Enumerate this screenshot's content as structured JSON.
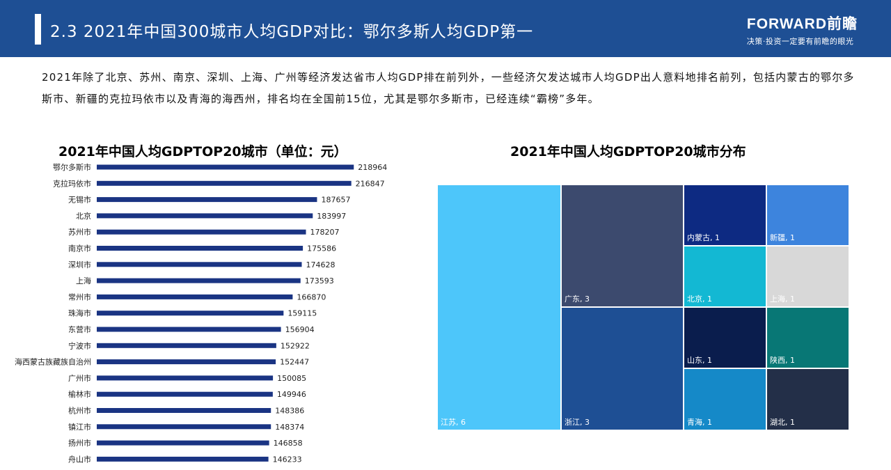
{
  "header": {
    "title": "2.3 2021年中国300城市人均GDP对比：鄂尔多斯人均GDP第一",
    "logo_name": "FORWARD前瞻",
    "logo_slogan": "决策·投资一定要有前瞻的眼光"
  },
  "intro_text": "2021年除了北京、苏州、南京、深圳、上海、广州等经济发达省市人均GDP排在前列外，一些经济欠发达城市人均GDP出人意料地排名前列，包括内蒙古的鄂尔多斯市、新疆的克拉玛依市以及青海的海西州，排名均在全国前15位，尤其是鄂尔多斯市，已经连续“霸榜”多年。",
  "colors": {
    "header": "#1e4f94",
    "bar": "#1a3483"
  },
  "chart_data": [
    {
      "type": "bar",
      "orientation": "horizontal",
      "title": "2021年中国人均GDPTOP20城市（单位：元）",
      "categories": [
        "鄂尔多斯市",
        "克拉玛依市",
        "无锡市",
        "北京",
        "苏州市",
        "南京市",
        "深圳市",
        "上海",
        "常州市",
        "珠海市",
        "东营市",
        "宁波市",
        "海西蒙古族藏族自治州",
        "广州市",
        "榆林市",
        "杭州市",
        "镇江市",
        "扬州市",
        "舟山市"
      ],
      "values": [
        218964,
        216847,
        187657,
        183997,
        178207,
        175586,
        174628,
        173593,
        166870,
        159115,
        156904,
        152922,
        152447,
        150085,
        149946,
        148386,
        148374,
        146858,
        146233
      ],
      "xlim": [
        0,
        220000
      ]
    },
    {
      "type": "treemap",
      "title": "2021年中国人均GDPTOP20城市分布",
      "items": [
        {
          "name": "江苏",
          "value": 6,
          "color": "#4dc6fa",
          "label": "江苏, 6"
        },
        {
          "name": "广东",
          "value": 3,
          "color": "#3c4a6e",
          "label": "广东, 3"
        },
        {
          "name": "浙江",
          "value": 3,
          "color": "#1e4f94",
          "label": "浙江, 3"
        },
        {
          "name": "内蒙古",
          "value": 1,
          "color": "#0d2a82",
          "label": "内蒙古, 1"
        },
        {
          "name": "新疆",
          "value": 1,
          "color": "#3d84dd",
          "label": "新疆, 1"
        },
        {
          "name": "北京",
          "value": 1,
          "color": "#13b8d3",
          "label": "北京, 1"
        },
        {
          "name": "上海",
          "value": 1,
          "color": "#d8d8d8",
          "label": "上海, 1"
        },
        {
          "name": "山东",
          "value": 1,
          "color": "#0a1d4d",
          "label": "山东, 1"
        },
        {
          "name": "陕西",
          "value": 1,
          "color": "#087775",
          "label": "陕西, 1"
        },
        {
          "name": "青海",
          "value": 1,
          "color": "#1589c8",
          "label": "青海, 1"
        },
        {
          "name": "湖北",
          "value": 1,
          "color": "#232f48",
          "label": "湖北, 1"
        }
      ]
    }
  ]
}
